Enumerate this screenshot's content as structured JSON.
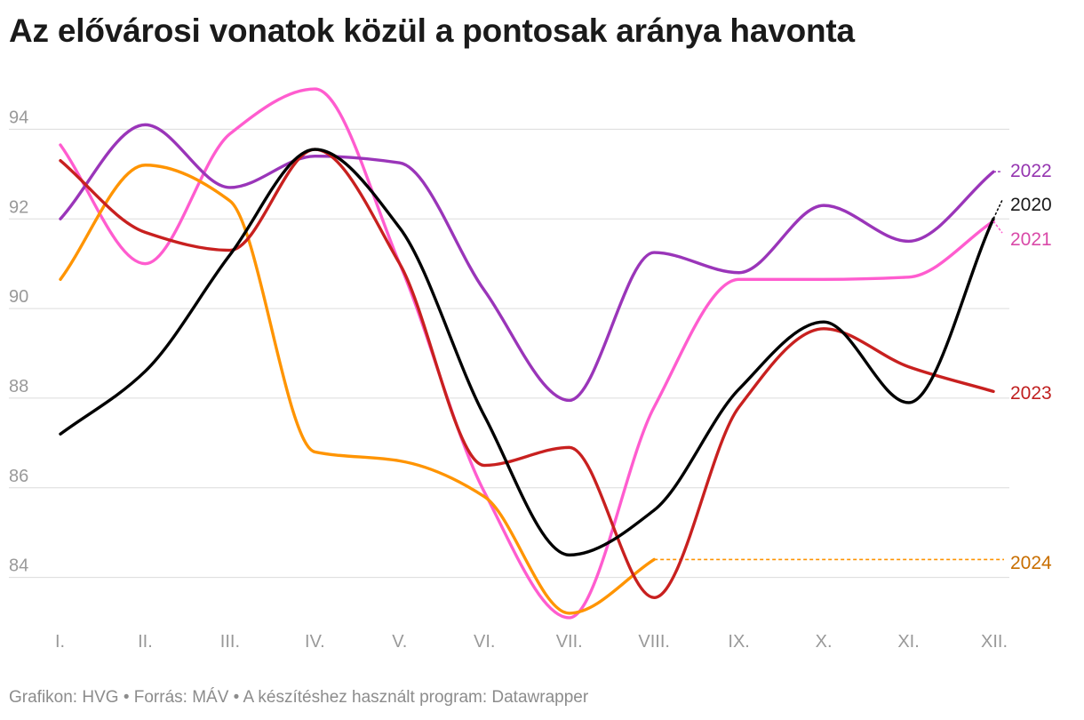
{
  "chart_data": {
    "type": "line",
    "title": "Az elővárosi vonatok közül a pontosak aránya havonta",
    "xlabel": "",
    "ylabel": "",
    "categories": [
      "I.",
      "II.",
      "III.",
      "IV.",
      "V.",
      "VI.",
      "VII.",
      "VIII.",
      "IX.",
      "X.",
      "XI.",
      "XII."
    ],
    "yticks": [
      "84",
      "86",
      "88",
      "90",
      "92",
      "94"
    ],
    "ylim": [
      83,
      95
    ],
    "grid": true,
    "series": [
      {
        "name": "2020",
        "color": "#000000",
        "label_color": "#1a1a1a",
        "values": [
          87.2,
          88.6,
          91.2,
          93.55,
          91.8,
          87.6,
          84.5,
          85.5,
          88.2,
          89.7,
          87.9,
          92.0
        ]
      },
      {
        "name": "2021",
        "color": "#ff5ccf",
        "label_color": "#d94aa8",
        "values": [
          93.65,
          91.0,
          93.9,
          94.9,
          91.0,
          85.9,
          83.1,
          87.8,
          90.65,
          90.65,
          90.7,
          91.95
        ]
      },
      {
        "name": "2022",
        "color": "#9a35b9",
        "label_color": "#9535b0",
        "values": [
          92.0,
          94.1,
          92.7,
          93.4,
          93.25,
          90.4,
          87.95,
          91.25,
          90.8,
          92.3,
          91.5,
          93.05
        ]
      },
      {
        "name": "2023",
        "color": "#c8201f",
        "label_color": "#c01f1f",
        "values": [
          93.3,
          91.7,
          91.3,
          93.55,
          91.0,
          86.5,
          86.9,
          83.55,
          87.8,
          89.55,
          88.7,
          88.15
        ]
      },
      {
        "name": "2024",
        "color": "#ff9400",
        "label_color": "#c86e00",
        "values": [
          90.65,
          93.2,
          92.4,
          86.8,
          86.6,
          85.8,
          83.2,
          84.4,
          null,
          null,
          null,
          null
        ],
        "projected_value": 84.4
      }
    ]
  },
  "footer": "Grafikon: HVG • Forrás: MÁV • A készítéshez használt program: Datawrapper"
}
